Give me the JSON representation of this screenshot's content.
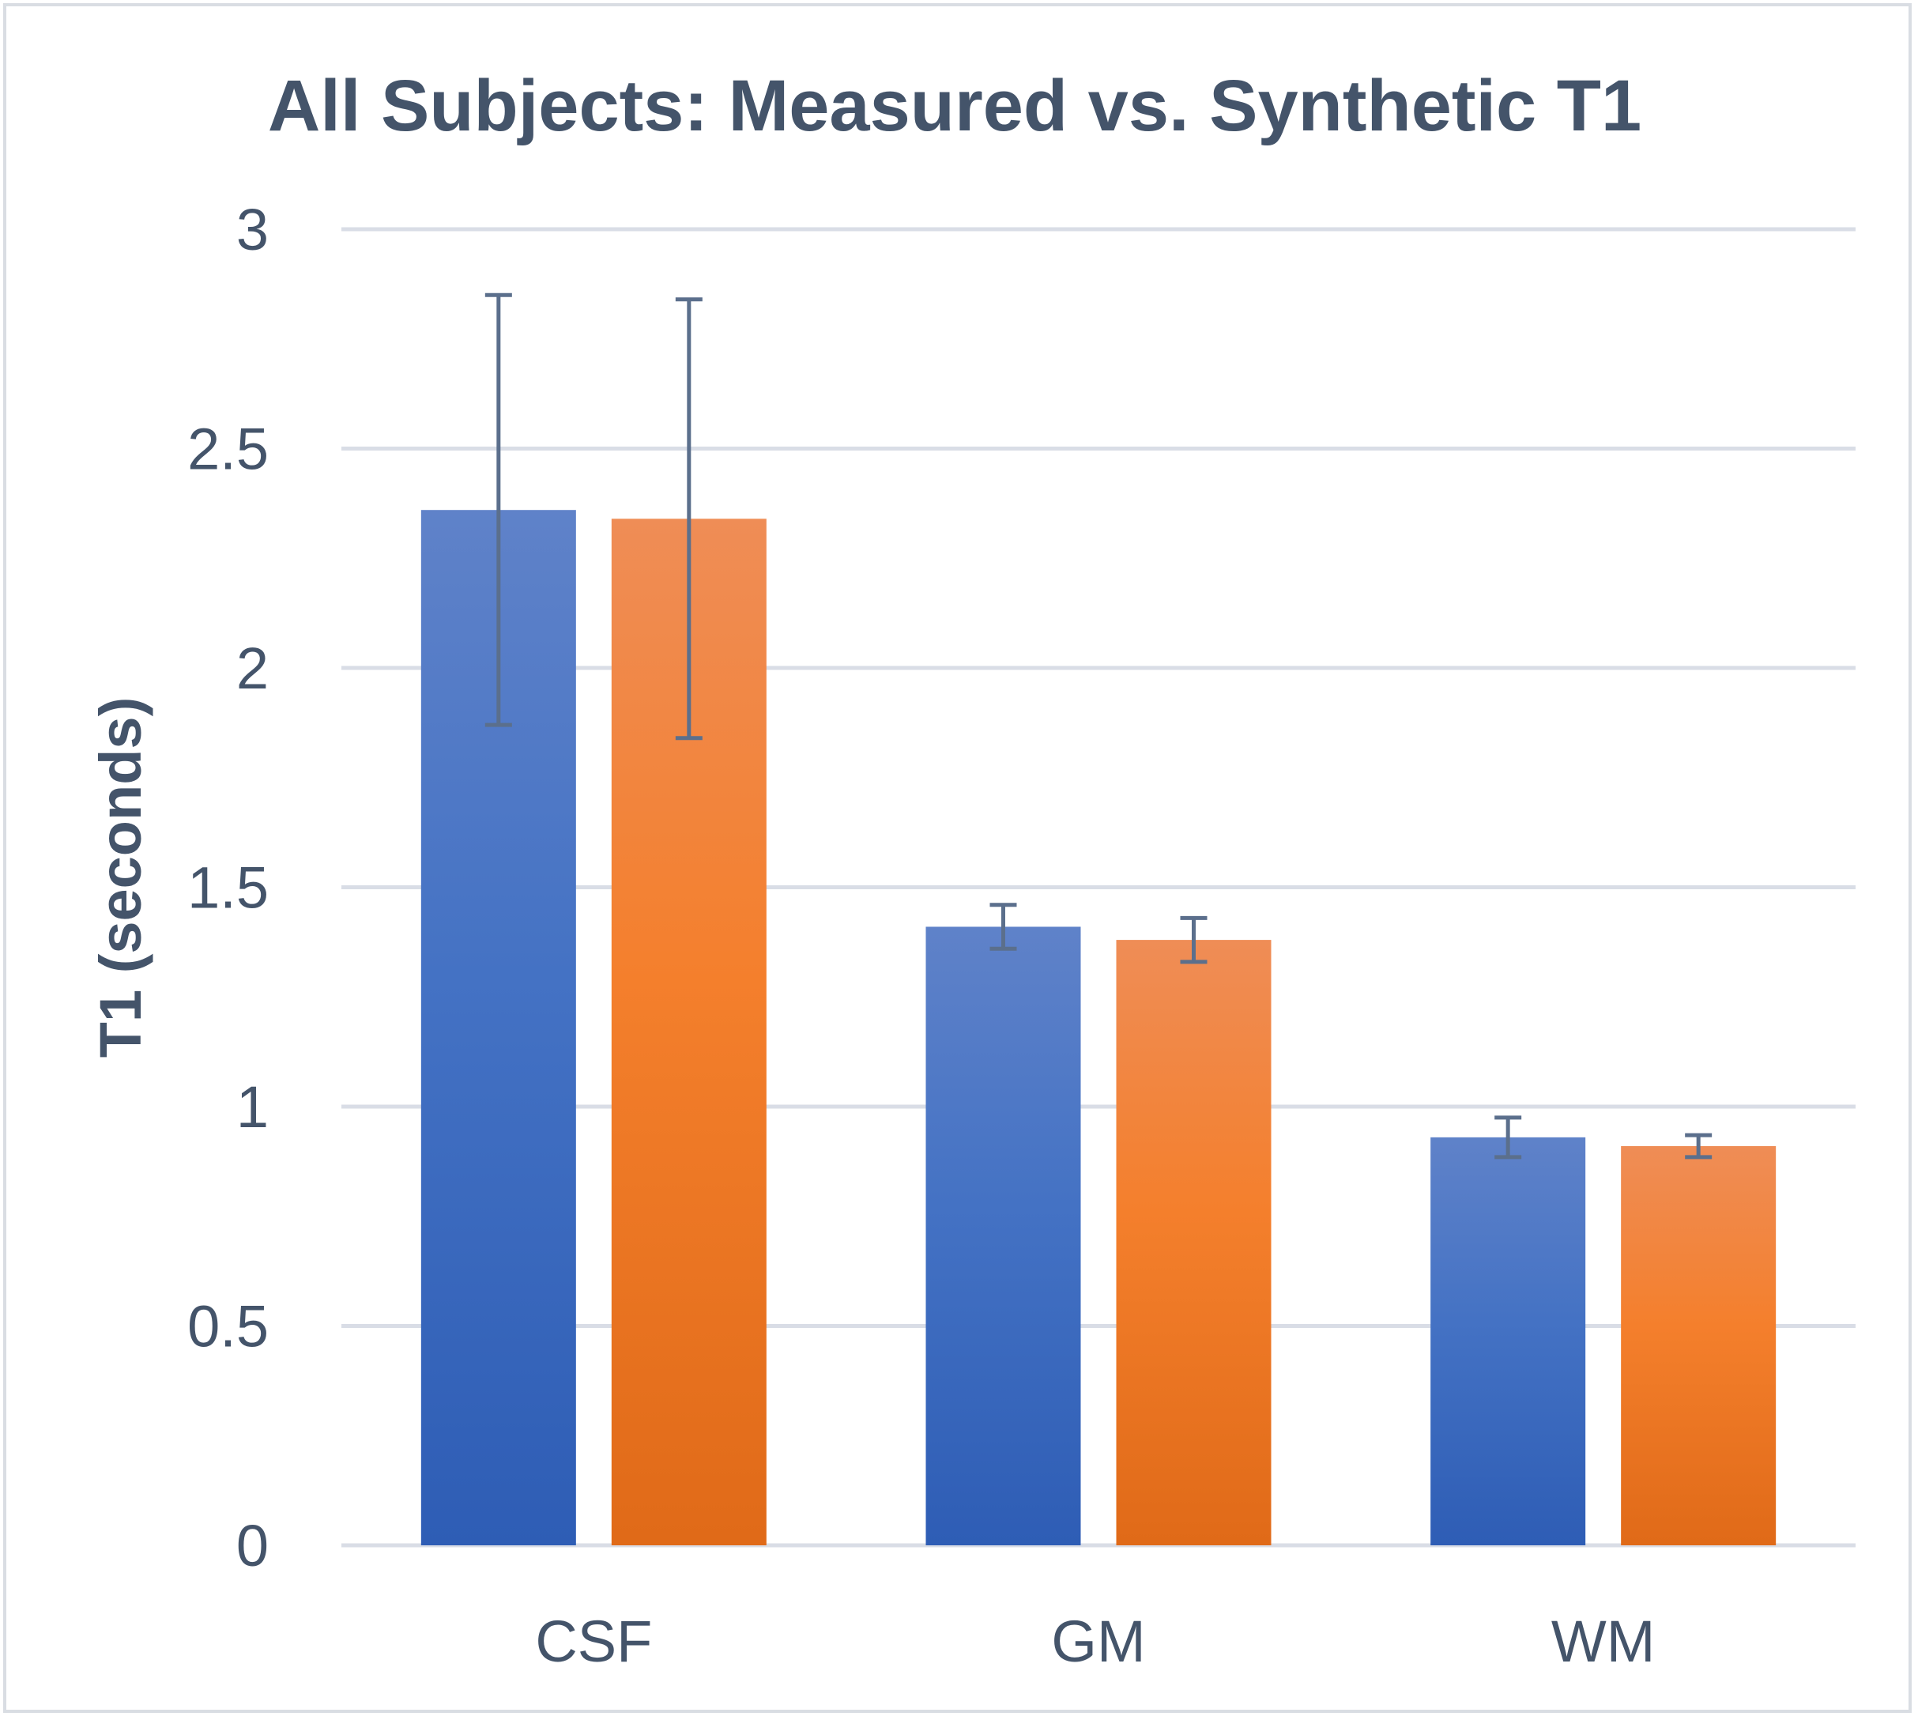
{
  "chart_data": {
    "type": "bar",
    "title": "All Subjects: Measured vs. Synthetic T1",
    "xlabel": "",
    "ylabel": "T1 (seconds)",
    "ylim": [
      0,
      3
    ],
    "yticks": [
      "0",
      "0.5",
      "1",
      "1.5",
      "2",
      "2.5",
      "3"
    ],
    "ytick_values": [
      0,
      0.5,
      1,
      1.5,
      2,
      2.5,
      3
    ],
    "categories": [
      "CSF",
      "GM",
      "WM"
    ],
    "grid": true,
    "legend": "none",
    "series": [
      {
        "name": "Measured",
        "color": "#4472c4",
        "values": [
          2.36,
          1.41,
          0.93
        ],
        "error": [
          0.49,
          0.05,
          0.045
        ]
      },
      {
        "name": "Synthetic",
        "color": "#ed7d31",
        "values": [
          2.34,
          1.38,
          0.91
        ],
        "error": [
          0.5,
          0.05,
          0.025
        ]
      }
    ]
  },
  "colors": {
    "measured_top": "#5f82c9",
    "measured_bottom": "#2e5db5",
    "synthetic_top": "#ef8d56",
    "synthetic_bottom": "#e06a18",
    "text": "#44546a",
    "grid": "#d9dde6",
    "error_bar": "#5b6f8c"
  }
}
